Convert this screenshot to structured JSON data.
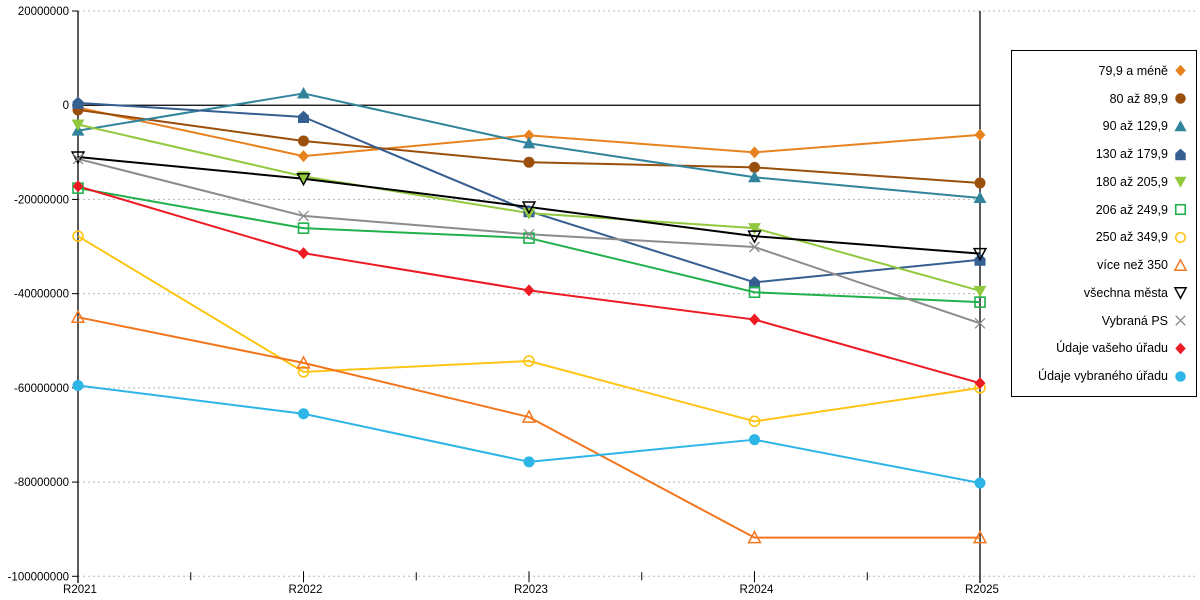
{
  "chart_data": {
    "type": "line",
    "title": "",
    "xlabel": "",
    "ylabel": "",
    "categories": [
      "R2021",
      "R2022",
      "R2023",
      "R2024",
      "R2025"
    ],
    "y_ticks": [
      20000000,
      0,
      -20000000,
      -40000000,
      -60000000,
      -80000000,
      -100000000
    ],
    "ylim": [
      -100000000,
      20000000
    ],
    "grid": "horizontal dashed gray lines at each 20000000 step, solid black line at 0",
    "legend_position": "right, labels right-aligned with marker after text",
    "axis_color": "#000000",
    "gridline_color": "#b8b8b8",
    "series": [
      {
        "name": "79,9 a méně",
        "marker": "diamond-filled",
        "color": "#E8821E",
        "values": [
          -500000,
          -10800000,
          -6400000,
          -10000000,
          -6300000
        ]
      },
      {
        "name": "80 až 89,9",
        "marker": "circle-filled",
        "color": "#9A4F0D",
        "values": [
          -1000000,
          -7600000,
          -12100000,
          -13200000,
          -16500000
        ]
      },
      {
        "name": "90 až 129,9",
        "marker": "triangle-up-filled",
        "color": "#31849B",
        "values": [
          -5400000,
          2500000,
          -8100000,
          -15300000,
          -19700000
        ]
      },
      {
        "name": "130 až 179,9",
        "marker": "pentagon-filled",
        "color": "#365F91",
        "values": [
          500000,
          -2500000,
          -22500000,
          -37600000,
          -32800000
        ]
      },
      {
        "name": "180 až 205,9",
        "marker": "triangle-down-filled",
        "color": "#92C83E",
        "values": [
          -4100000,
          -15100000,
          -22900000,
          -26100000,
          -39400000
        ]
      },
      {
        "name": "206 až 249,9",
        "marker": "square-open",
        "color": "#21B14C",
        "values": [
          -17600000,
          -26100000,
          -28200000,
          -39700000,
          -41800000
        ]
      },
      {
        "name": "250 až 349,9",
        "marker": "circle-open",
        "color": "#FFC415",
        "values": [
          -27800000,
          -56600000,
          -54300000,
          -67100000,
          -60000000
        ]
      },
      {
        "name": "více než 350",
        "marker": "triangle-up-open",
        "color": "#F3761D",
        "values": [
          -45000000,
          -54700000,
          -66200000,
          -91800000,
          -91800000
        ]
      },
      {
        "name": "všechna města",
        "marker": "triangle-down-open",
        "color": "#000000",
        "values": [
          -11000000,
          -15600000,
          -21600000,
          -27800000,
          -31500000
        ]
      },
      {
        "name": "Vybraná PS",
        "marker": "x-cross",
        "color": "#8C8C8C",
        "values": [
          -11400000,
          -23500000,
          -27400000,
          -30100000,
          -46300000
        ]
      },
      {
        "name": "Údaje vašeho úřadu",
        "marker": "diamond-filled",
        "color": "#EC1B24",
        "values": [
          -17200000,
          -31400000,
          -39300000,
          -45500000,
          -59000000
        ]
      },
      {
        "name": "Údaje vybraného úřadu",
        "marker": "circle-filled",
        "color": "#2EB5E8",
        "values": [
          -59500000,
          -65500000,
          -75700000,
          -71000000,
          -80200000
        ]
      }
    ]
  }
}
